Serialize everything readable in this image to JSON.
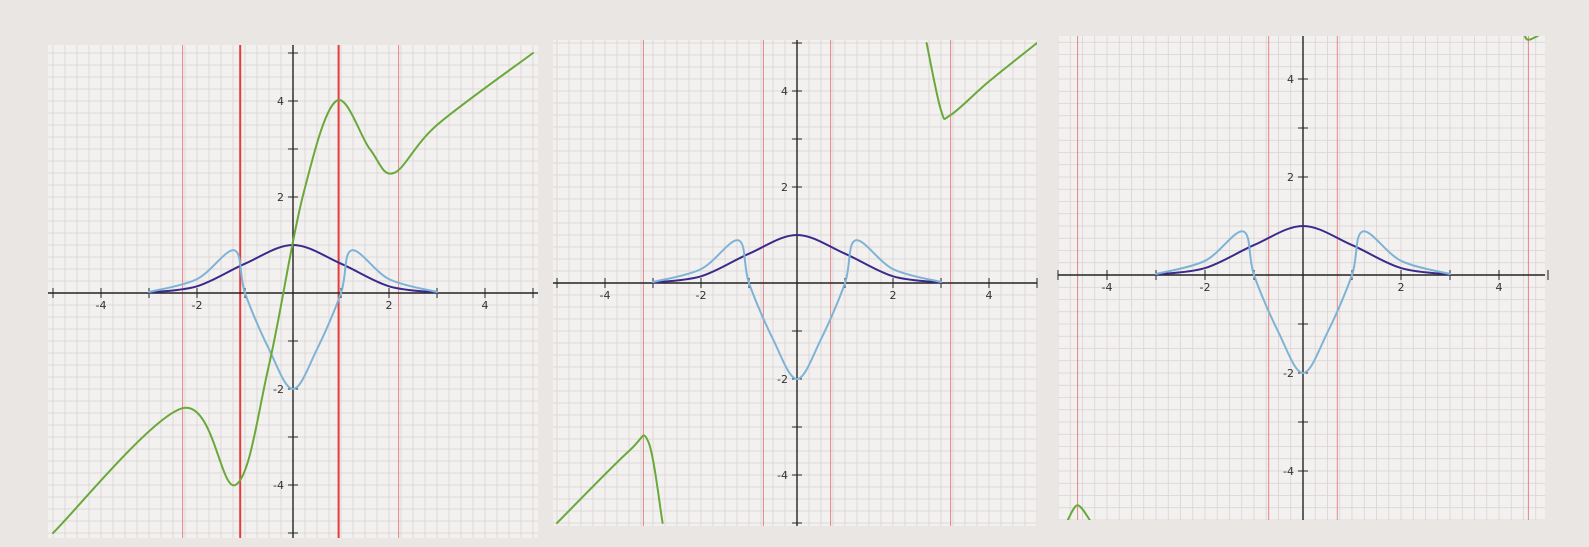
{
  "chart_data": [
    {
      "type": "line",
      "title": "",
      "xlabel": "",
      "ylabel": "",
      "xlim": [
        -5,
        5
      ],
      "ylim": [
        -5,
        5
      ],
      "grid": true,
      "x_ticks": [
        "-4",
        "-2",
        "2",
        "4"
      ],
      "y_ticks": [
        "4",
        "2",
        "-2",
        "-4"
      ],
      "colors": {
        "gaussian": "#3b2a8a",
        "second_derivative": "#7fb3d5",
        "rational": "#6aa83a",
        "asymptote": "#e06c6c",
        "asymptote_strong": "#e63b3b"
      },
      "series": [
        {
          "role": "gaussian",
          "points": [
            [
              -3,
              0.01
            ],
            [
              -2,
              0.14
            ],
            [
              -1,
              0.61
            ],
            [
              0,
              1.0
            ],
            [
              1,
              0.61
            ],
            [
              2,
              0.14
            ],
            [
              3,
              0.01
            ]
          ]
        },
        {
          "role": "second_derivative",
          "points": [
            [
              -3,
              0.02
            ],
            [
              -2,
              0.29
            ],
            [
              -1.22,
              0.89
            ],
            [
              -1,
              0.0
            ],
            [
              -0.5,
              -1.17
            ],
            [
              0,
              -2.0
            ],
            [
              0.5,
              -1.17
            ],
            [
              1,
              0.0
            ],
            [
              1.22,
              0.89
            ],
            [
              2,
              0.29
            ],
            [
              3,
              0.02
            ]
          ]
        },
        {
          "role": "rational",
          "points": [
            [
              -5,
              -5.0
            ],
            [
              -2.3,
              -2.4
            ],
            [
              -1.2,
              -4.0
            ],
            [
              -0.5,
              -1.5
            ],
            [
              0.2,
              2.0
            ],
            [
              0.9,
              4.0
            ],
            [
              1.6,
              3.0
            ],
            [
              2.1,
              2.5
            ],
            [
              3,
              3.5
            ],
            [
              5,
              5.0
            ]
          ]
        }
      ],
      "asymptotes": [
        -2.3,
        -1.1,
        0.95,
        2.2
      ],
      "strong_asymptotes": [
        -1.1,
        0.95
      ]
    },
    {
      "type": "line",
      "title": "",
      "xlabel": "",
      "ylabel": "",
      "xlim": [
        -5,
        5
      ],
      "ylim": [
        -5,
        5
      ],
      "grid": true,
      "x_ticks": [
        "-4",
        "-2",
        "2",
        "4"
      ],
      "y_ticks": [
        "4",
        "2",
        "-2",
        "-4"
      ],
      "colors": {
        "gaussian": "#3b2a8a",
        "second_derivative": "#7fb3d5",
        "rational": "#6aa83a",
        "asymptote": "#e06c6c",
        "asymptote_strong": "#e63b3b"
      },
      "series": [
        {
          "role": "gaussian",
          "points": [
            [
              -3,
              0.01
            ],
            [
              -2,
              0.14
            ],
            [
              -1,
              0.61
            ],
            [
              0,
              1.0
            ],
            [
              1,
              0.61
            ],
            [
              2,
              0.14
            ],
            [
              3,
              0.01
            ]
          ]
        },
        {
          "role": "second_derivative",
          "points": [
            [
              -3,
              0.02
            ],
            [
              -2,
              0.29
            ],
            [
              -1.22,
              0.89
            ],
            [
              -1,
              0.0
            ],
            [
              -0.5,
              -1.17
            ],
            [
              0,
              -2.0
            ],
            [
              0.5,
              -1.17
            ],
            [
              1,
              0.0
            ],
            [
              1.22,
              0.89
            ],
            [
              2,
              0.29
            ],
            [
              3,
              0.02
            ]
          ]
        },
        {
          "role": "rational",
          "points": [
            [
              -5,
              -5.0
            ],
            [
              -3.5,
              -3.5
            ],
            [
              -3.1,
              -3.3
            ],
            [
              -2.8,
              -5.0
            ]
          ]
        },
        {
          "role": "rational",
          "points": [
            [
              2.7,
              5.0
            ],
            [
              3.0,
              3.6
            ],
            [
              3.2,
              3.5
            ],
            [
              4.0,
              4.2
            ],
            [
              5.0,
              5.0
            ]
          ]
        }
      ],
      "asymptotes": [
        -3.2,
        -0.7,
        0.7,
        3.2
      ],
      "strong_asymptotes": []
    },
    {
      "type": "line",
      "title": "",
      "xlabel": "",
      "ylabel": "",
      "xlim": [
        -5,
        5
      ],
      "ylim": [
        -5,
        5
      ],
      "grid": true,
      "x_ticks": [
        "-4",
        "-2",
        "2",
        "4"
      ],
      "y_ticks": [
        "4",
        "2",
        "-2",
        "-4"
      ],
      "colors": {
        "gaussian": "#3b2a8a",
        "second_derivative": "#7fb3d5",
        "rational": "#6aa83a",
        "asymptote": "#e06c6c",
        "asymptote_strong": "#e63b3b"
      },
      "series": [
        {
          "role": "gaussian",
          "points": [
            [
              -3,
              0.01
            ],
            [
              -2,
              0.14
            ],
            [
              -1,
              0.61
            ],
            [
              0,
              1.0
            ],
            [
              1,
              0.61
            ],
            [
              2,
              0.14
            ],
            [
              3,
              0.01
            ]
          ]
        },
        {
          "role": "second_derivative",
          "points": [
            [
              -3,
              0.02
            ],
            [
              -2,
              0.29
            ],
            [
              -1.22,
              0.89
            ],
            [
              -1,
              0.0
            ],
            [
              -0.5,
              -1.17
            ],
            [
              0,
              -2.0
            ],
            [
              0.5,
              -1.17
            ],
            [
              1,
              0.0
            ],
            [
              1.22,
              0.89
            ],
            [
              2,
              0.29
            ],
            [
              3,
              0.02
            ]
          ]
        },
        {
          "role": "rational",
          "points": [
            [
              -4.8,
              -5.0
            ],
            [
              -4.6,
              -4.7
            ],
            [
              -4.35,
              -5.0
            ]
          ]
        },
        {
          "role": "rational",
          "points": [
            [
              4.5,
              5.0
            ],
            [
              4.6,
              4.8
            ],
            [
              5.0,
              5.0
            ]
          ]
        }
      ],
      "asymptotes": [
        -4.6,
        -0.7,
        0.7,
        4.6
      ],
      "strong_asymptotes": []
    }
  ]
}
